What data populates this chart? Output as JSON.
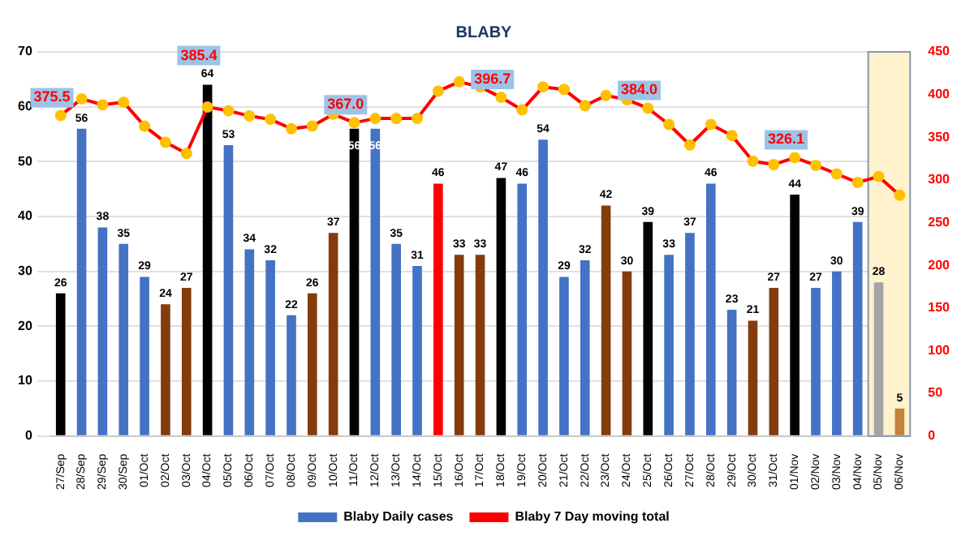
{
  "chart_data": {
    "type": "bar",
    "title": "BLABY",
    "categories": [
      "27/Sep",
      "28/Sep",
      "29/Sep",
      "30/Sep",
      "01/Oct",
      "02/Oct",
      "03/Oct",
      "04/Oct",
      "05/Oct",
      "06/Oct",
      "07/Oct",
      "08/Oct",
      "09/Oct",
      "10/Oct",
      "11/Oct",
      "12/Oct",
      "13/Oct",
      "14/Oct",
      "15/Oct",
      "16/Oct",
      "17/Oct",
      "18/Oct",
      "19/Oct",
      "20/Oct",
      "21/Oct",
      "22/Oct",
      "23/Oct",
      "24/Oct",
      "25/Oct",
      "26/Oct",
      "27/Oct",
      "28/Oct",
      "29/Oct",
      "30/Oct",
      "31/Oct",
      "01/Nov",
      "02/Nov",
      "03/Nov",
      "04/Nov",
      "05/Nov",
      "06/Nov"
    ],
    "series": [
      {
        "name": "Blaby Daily cases",
        "color": "#4472c4",
        "colors": [
          "#000000",
          "#4472c4",
          "#4472c4",
          "#4472c4",
          "#4472c4",
          "#843c0c",
          "#843c0c",
          "#000000",
          "#4472c4",
          "#4472c4",
          "#4472c4",
          "#4472c4",
          "#843c0c",
          "#843c0c",
          "#000000",
          "#4472c4",
          "#4472c4",
          "#4472c4",
          "#ff0000",
          "#843c0c",
          "#843c0c",
          "#000000",
          "#4472c4",
          "#4472c4",
          "#4472c4",
          "#4472c4",
          "#843c0c",
          "#843c0c",
          "#000000",
          "#4472c4",
          "#4472c4",
          "#4472c4",
          "#4472c4",
          "#843c0c",
          "#843c0c",
          "#000000",
          "#4472c4",
          "#4472c4",
          "#4472c4",
          "#a5a5a5",
          "#c0843c"
        ],
        "values": [
          26,
          56,
          38,
          35,
          29,
          24,
          27,
          64,
          53,
          34,
          32,
          22,
          26,
          37,
          56,
          56,
          35,
          31,
          46,
          33,
          33,
          47,
          46,
          54,
          29,
          32,
          42,
          30,
          39,
          33,
          37,
          46,
          23,
          21,
          27,
          44,
          27,
          30,
          39,
          28,
          5
        ],
        "value_labels": [
          "26",
          "56",
          "38",
          "35",
          "29",
          "24",
          "27",
          "64",
          "53",
          "34",
          "32",
          "22",
          "26",
          "37",
          "56",
          "56",
          "35",
          "31",
          "46",
          "33",
          "33",
          "47",
          "46",
          "54",
          "29",
          "32",
          "42",
          "30",
          "39",
          "33",
          "37",
          "46",
          "23",
          "21",
          "27",
          "44",
          "27",
          "30",
          "39",
          "28",
          "5"
        ]
      },
      {
        "name": "Blaby 7 Day moving total",
        "type": "line",
        "color": "#ff0000",
        "axis": "y2",
        "marker": "circle",
        "values": [
          375.5,
          395,
          388,
          391,
          363,
          344,
          331,
          385.4,
          381,
          375,
          371,
          360,
          363,
          377,
          367.0,
          372,
          372,
          372,
          404,
          415,
          409,
          396.7,
          382,
          409,
          406,
          387,
          399,
          394,
          384.0,
          365,
          341,
          365,
          352,
          322,
          318,
          326.1,
          317,
          307,
          297,
          304,
          282
        ],
        "value_labels": [
          "375.5",
          null,
          null,
          null,
          null,
          null,
          null,
          "385.4",
          null,
          null,
          null,
          null,
          null,
          null,
          "367.0",
          null,
          null,
          null,
          null,
          null,
          null,
          "396.7",
          null,
          null,
          null,
          null,
          null,
          null,
          "384.0",
          null,
          null,
          null,
          null,
          null,
          null,
          "326.1",
          null,
          null,
          null,
          null,
          null
        ]
      }
    ],
    "ylim": [
      0,
      70
    ],
    "yticks": [
      0,
      10,
      20,
      30,
      40,
      50,
      60,
      70
    ],
    "y2lim": [
      0,
      450
    ],
    "y2ticks": [
      0,
      50,
      100,
      150,
      200,
      250,
      300,
      350,
      400,
      450
    ],
    "grid": "y",
    "legend": "bottom",
    "bands": [
      {
        "axis": "x",
        "from": "05/Nov",
        "to": "06/Nov",
        "color": "#fff2cc"
      }
    ]
  }
}
